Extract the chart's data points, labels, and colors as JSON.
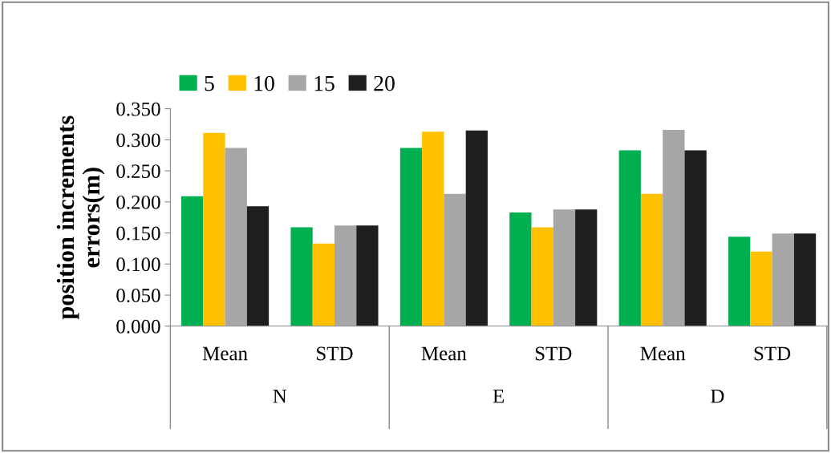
{
  "chart_data": {
    "type": "bar",
    "ylabel": "position increments\nerrors(m)",
    "categories": [
      "Mean",
      "STD",
      "Mean",
      "STD",
      "Mean",
      "STD"
    ],
    "annotations": [
      "N",
      "E",
      "D"
    ],
    "series": [
      {
        "name": "5",
        "color": "#00b050",
        "values": [
          0.209,
          0.159,
          0.287,
          0.183,
          0.283,
          0.144
        ]
      },
      {
        "name": "10",
        "color": "#ffc000",
        "values": [
          0.311,
          0.133,
          0.313,
          0.159,
          0.213,
          0.12
        ]
      },
      {
        "name": "15",
        "color": "#a6a6a6",
        "values": [
          0.287,
          0.162,
          0.213,
          0.188,
          0.316,
          0.149
        ]
      },
      {
        "name": "20",
        "color": "#1f1f1f",
        "values": [
          0.193,
          0.162,
          0.315,
          0.188,
          0.283,
          0.149
        ]
      }
    ],
    "ylim": [
      0,
      0.35
    ],
    "yticks": [
      {
        "value": 0,
        "label": "0.000"
      },
      {
        "value": 0.05,
        "label": "0.050"
      },
      {
        "value": 0.1,
        "label": "0.100"
      },
      {
        "value": 0.15,
        "label": "0.150"
      },
      {
        "value": 0.2,
        "label": "0.200"
      },
      {
        "value": 0.25,
        "label": "0.250"
      },
      {
        "value": 0.3,
        "label": "0.300"
      },
      {
        "value": 0.35,
        "label": "0.350"
      }
    ],
    "grid": false,
    "legend": "top left"
  }
}
